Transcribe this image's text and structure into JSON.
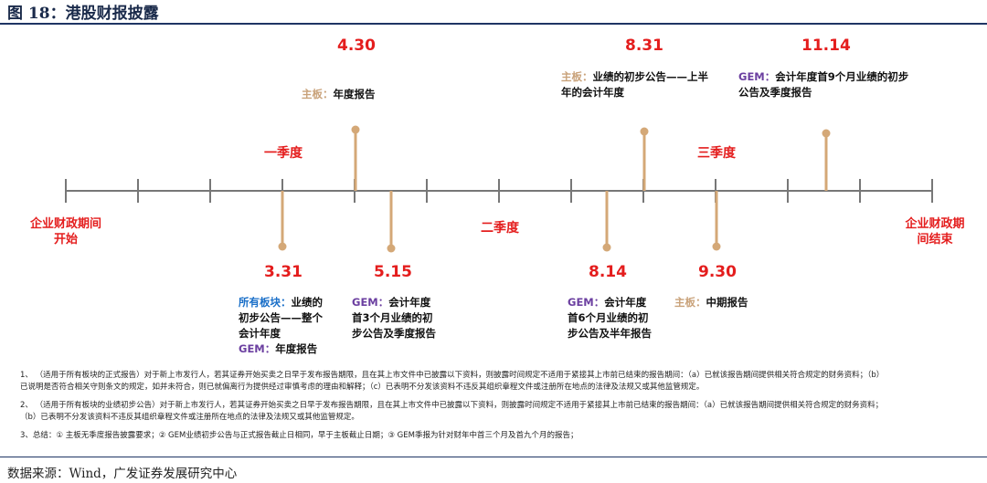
{
  "figure": {
    "title": "图 18：港股财报披露",
    "source": "数据来源：Wind，广发证券发展研究中心"
  },
  "colors": {
    "accent_red": "#e41d1d",
    "main_board": "#c9a27a",
    "gem": "#6b3fa0",
    "all_boards": "#1a6fc8",
    "axis": "#777777",
    "stem": "#d4a877"
  },
  "timeline": {
    "start_label": "企业财政期间开始",
    "start_lines": [
      "企业财政期间",
      "开始"
    ],
    "end_label": "企业财政期间结束",
    "end_lines": [
      "企业财政期",
      "间结束"
    ],
    "tick_count": 13,
    "quarters": [
      {
        "label": "一季度"
      },
      {
        "label": "二季度"
      },
      {
        "label": "三季度"
      }
    ]
  },
  "events": [
    {
      "date": "4.30",
      "tag": "主板：",
      "tag_color": "main_board",
      "text_lines": [
        "年度报告"
      ]
    },
    {
      "date": "8.31",
      "tag": "主板：",
      "tag_color": "main_board",
      "text_lines": [
        "业绩的初步公告——上半",
        "年的会计年度"
      ]
    },
    {
      "date": "11.14",
      "tag": "GEM：",
      "tag_color": "gem",
      "text_lines": [
        "会计年度首9个月业绩的初步",
        "公告及季度报告"
      ]
    },
    {
      "date": "3.31",
      "tag": "所有板块：",
      "tag_color": "all_boards",
      "text_lines": [
        "业绩的",
        "初步公告——整个",
        "会计年度"
      ],
      "tag2": "GEM：",
      "tag2_text": "年度报告"
    },
    {
      "date": "5.15",
      "tag": "GEM：",
      "tag_color": "gem",
      "text_lines": [
        "会计年度",
        "首3个月业绩的初",
        "步公告及季度报告"
      ]
    },
    {
      "date": "8.14",
      "tag": "GEM：",
      "tag_color": "gem",
      "text_lines": [
        "会计年度",
        "首6个月业绩的初",
        "步公告及半年报告"
      ]
    },
    {
      "date": "9.30",
      "tag": "主板：",
      "tag_color": "main_board",
      "text_lines": [
        "中期报告"
      ]
    }
  ],
  "notes": [
    {
      "lines": [
        "1、 （适用于所有板块的正式报告）对于新上市发行人，若其证券开始买卖之日早于发布报告期限，且在其上市文件中已披露以下资料，则披露时间规定不适用于紧接其上市前已结束的报告期间：（a）已就该报告期间提供相关符合规定的财务资料；（b）",
        "已说明是否符合相关守则条文的规定，如并未符合，则已就偏离行为提供经过审慎考虑的理由和解释；（c）已表明不分发该资料不违反其组织章程文件或注册所在地点的法律及法规又或其他监管规定。"
      ]
    },
    {
      "lines": [
        "2、 （适用于所有板块的业绩初步公告）对于新上市发行人，若其证券开始买卖之日早于发布报告期限，且在其上市文件中已披露以下资料，则披露时间规定不适用于紧接其上市前已结束的报告期间：（a）已就该报告期间提供相关符合规定的财务资料；",
        "（b）已表明不分发该资料不违反其组织章程文件或注册所在地点的法律及法规又或其他监管规定。"
      ]
    },
    {
      "lines": [
        "3、总结：① 主板无季度报告披露要求；② GEM业绩初步公告与正式报告截止日相同，早于主板截止日期；③ GEM季报为针对财年中首三个月及首九个月的报告；"
      ]
    }
  ]
}
